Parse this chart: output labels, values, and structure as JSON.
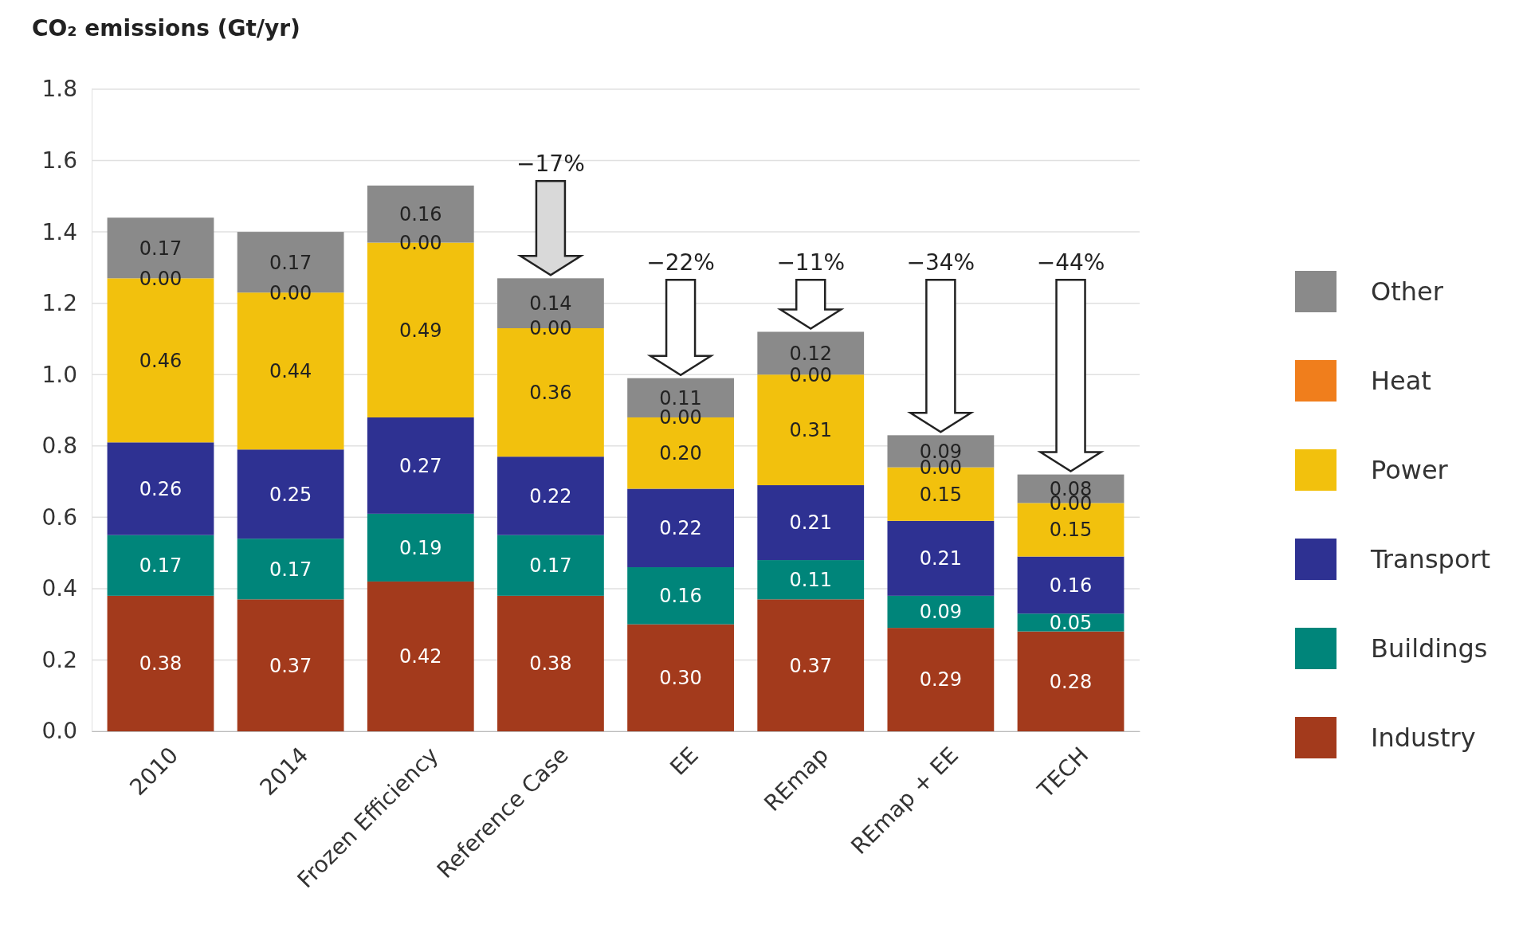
{
  "chart_data": {
    "type": "bar",
    "stacked": true,
    "ylabel": "CO₂ emissions (Gt/yr)",
    "categories": [
      "2010",
      "2014",
      "Frozen Efficiency",
      "Reference Case",
      "EE",
      "REmap",
      "REmap + EE",
      "TECH"
    ],
    "series": [
      {
        "name": "Industry",
        "color": "#a33a1c",
        "values": [
          0.38,
          0.37,
          0.42,
          0.38,
          0.3,
          0.37,
          0.29,
          0.28
        ],
        "value_labels": [
          "0.38",
          "0.37",
          "0.42",
          "0.38",
          "0.30",
          "0.37",
          "0.29",
          "0.28"
        ]
      },
      {
        "name": "Buildings",
        "color": "#00857a",
        "values": [
          0.17,
          0.17,
          0.19,
          0.17,
          0.16,
          0.11,
          0.09,
          0.05
        ],
        "value_labels": [
          "0.17",
          "0.17",
          "0.19",
          "0.17",
          "0.16",
          "0.11",
          "0.09",
          "0.05"
        ]
      },
      {
        "name": "Transport",
        "color": "#2e3192",
        "values": [
          0.26,
          0.25,
          0.27,
          0.22,
          0.22,
          0.21,
          0.21,
          0.16
        ],
        "value_labels": [
          "0.26",
          "0.25",
          "0.27",
          "0.22",
          "0.22",
          "0.21",
          "0.21",
          "0.16"
        ]
      },
      {
        "name": "Power",
        "color": "#f2c10d",
        "values": [
          0.46,
          0.44,
          0.49,
          0.36,
          0.2,
          0.31,
          0.15,
          0.15
        ],
        "value_labels": [
          "0.46",
          "0.44",
          "0.49",
          "0.36",
          "0.20",
          "0.31",
          "0.15",
          "0.15"
        ]
      },
      {
        "name": "Heat",
        "color": "#f07e1c",
        "values": [
          0,
          0,
          0,
          0,
          0,
          0,
          0,
          0
        ],
        "value_labels": [
          "0.00",
          "0.00",
          "0.00",
          "0.00",
          "0.00",
          "0.00",
          "0.00",
          "0.00"
        ]
      },
      {
        "name": "Other",
        "color": "#8a8a8a",
        "values": [
          0.17,
          0.17,
          0.16,
          0.14,
          0.11,
          0.12,
          0.09,
          0.08
        ],
        "value_labels": [
          "0.17",
          "0.17",
          "0.16",
          "0.14",
          "0.11",
          "0.12",
          "0.09",
          "0.08"
        ]
      }
    ],
    "ylim": [
      0,
      1.8
    ],
    "yticks": [
      {
        "value": 0,
        "label": "0.0"
      },
      {
        "value": 0.2,
        "label": "0.2"
      },
      {
        "value": 0.4,
        "label": "0.4"
      },
      {
        "value": 0.6,
        "label": "0.6"
      },
      {
        "value": 0.8,
        "label": "0.8"
      },
      {
        "value": 1.0,
        "label": "1.0"
      },
      {
        "value": 1.2,
        "label": "1.2"
      },
      {
        "value": 1.4,
        "label": "1.4"
      },
      {
        "value": 1.6,
        "label": "1.6"
      },
      {
        "value": 1.8,
        "label": "1.8"
      }
    ],
    "grid": "y",
    "legend": "right",
    "annotations": [
      "−17%",
      "−22%",
      "−11%",
      "−34%",
      "−44%"
    ]
  }
}
